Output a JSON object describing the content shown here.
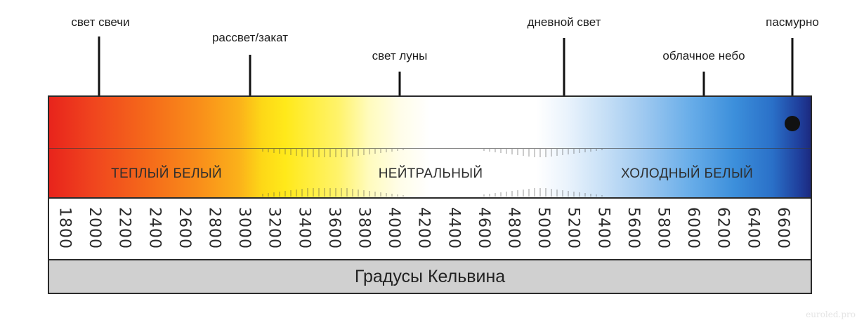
{
  "pointers": [
    {
      "id": "candle",
      "label": "свет свечи"
    },
    {
      "id": "sunrise",
      "label": "рассвет/закат"
    },
    {
      "id": "moon",
      "label": "свет луны"
    },
    {
      "id": "daylight",
      "label": "дневной свет"
    },
    {
      "id": "cloudy",
      "label": "облачное небо"
    },
    {
      "id": "overcast",
      "label": "пасмурно"
    }
  ],
  "bands": {
    "warm": "ТЕПЛЫЙ БЕЛЫЙ",
    "neutral": "НЕЙТРАЛЬНЫЙ",
    "cold": "ХОЛОДНЫЙ БЕЛЫЙ"
  },
  "kelvin_values": [
    "1800",
    "2000",
    "2200",
    "2400",
    "2600",
    "2800",
    "3000",
    "3200",
    "3400",
    "3600",
    "3800",
    "4000",
    "4200",
    "4400",
    "4600",
    "4800",
    "5000",
    "5200",
    "5400",
    "5600",
    "5800",
    "6000",
    "6200",
    "6400",
    "6600"
  ],
  "axis_title": "Градусы Кельвина",
  "watermark": "euroled.pro",
  "colors": {
    "warm": "#e8241c",
    "neutral": "#ffffff",
    "cold": "#1c2a80"
  }
}
